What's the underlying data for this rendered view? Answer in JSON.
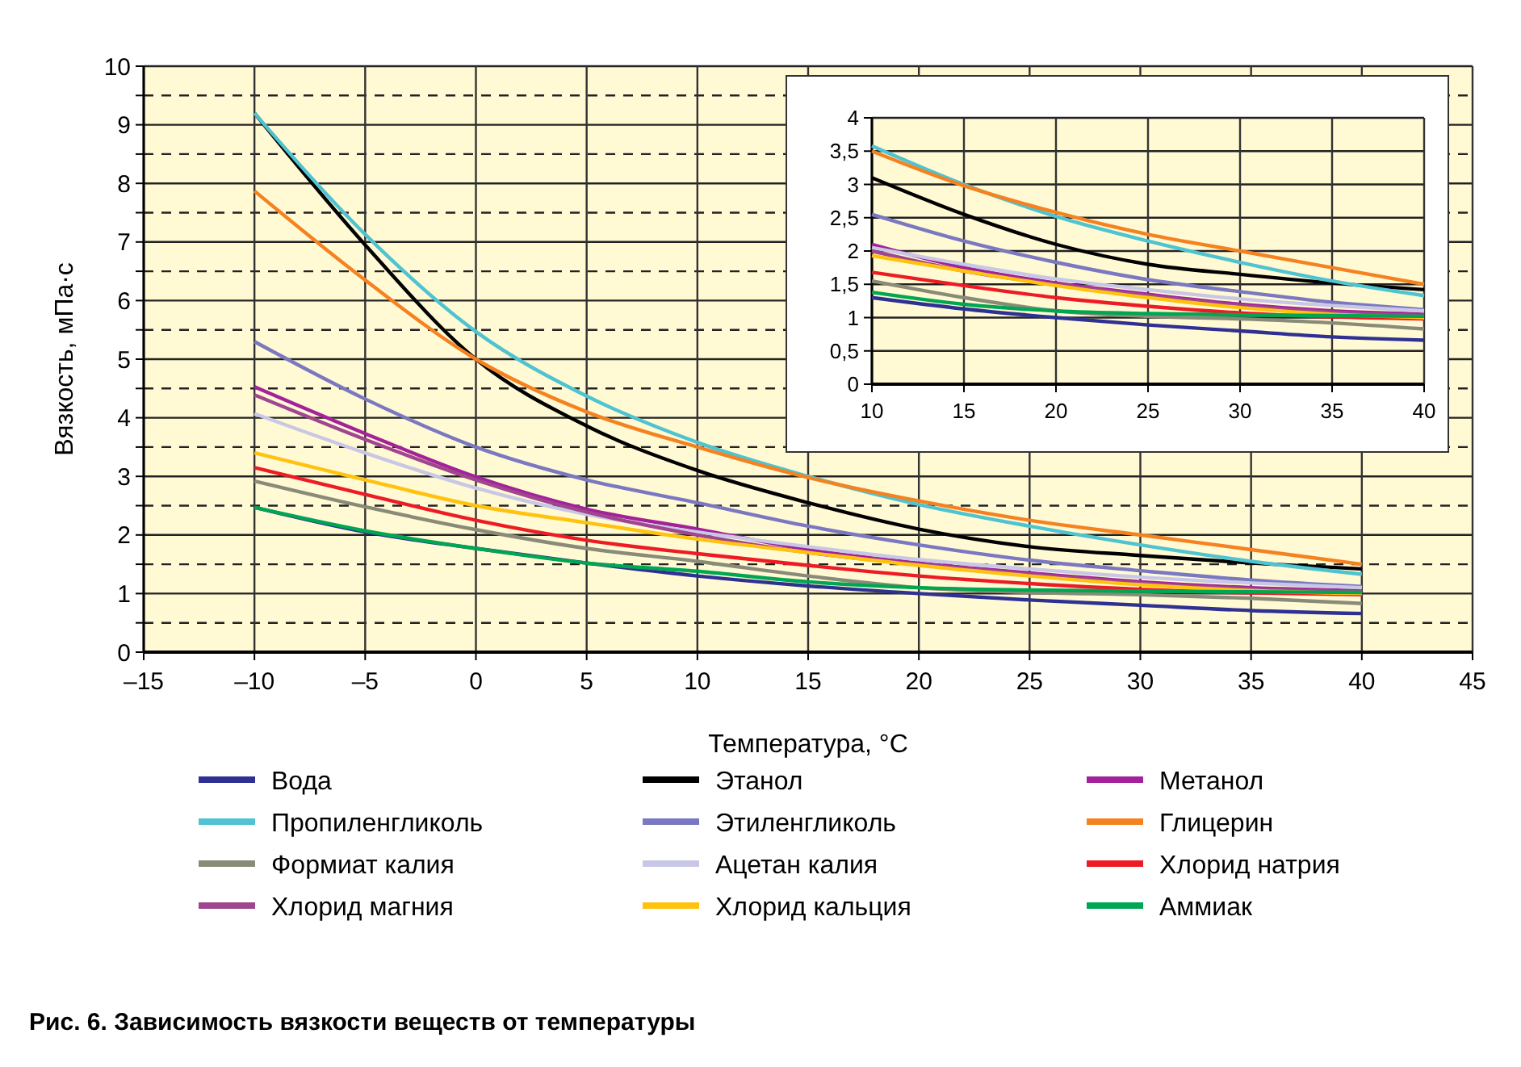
{
  "chart_data": [
    {
      "type": "line",
      "title": "Рис. 6. Зависимость вязкости веществ от температуры",
      "xlabel": "Температура, °C",
      "ylabel": "Вязкость, мПа·с",
      "grid": true,
      "legend": "bottom",
      "x": [
        -10,
        -5,
        0,
        5,
        10,
        15,
        20,
        25,
        30,
        35,
        40
      ],
      "xlim": [
        -15,
        45
      ],
      "xticks": [
        {
          "value": -15,
          "label": "–15"
        },
        {
          "value": -10,
          "label": "–10"
        },
        {
          "value": -5,
          "label": "–5"
        },
        0,
        5,
        10,
        15,
        20,
        25,
        30,
        35,
        40,
        45
      ],
      "ylim": [
        0,
        10
      ],
      "yticks": [
        0,
        {
          "value": 0.5,
          "label": null
        },
        1,
        {
          "value": 1.5,
          "label": null
        },
        2,
        {
          "value": 2.5,
          "label": null
        },
        3,
        {
          "value": 3.5,
          "label": null
        },
        4,
        {
          "value": 4.5,
          "label": null
        },
        5,
        {
          "value": 5.5,
          "label": null
        },
        6,
        {
          "value": 6.5,
          "label": null
        },
        7,
        {
          "value": 7.5,
          "label": null
        },
        8,
        {
          "value": 8.5,
          "label": null
        },
        9,
        {
          "value": 9.5,
          "label": null
        },
        10
      ],
      "series": [
        {
          "name": "Вода",
          "color": "#2e3192",
          "values": [
            2.47,
            2.05,
            1.77,
            1.52,
            1.3,
            1.13,
            1.0,
            0.89,
            0.8,
            0.71,
            0.66
          ]
        },
        {
          "name": "Этанол",
          "color": "#000000",
          "values": [
            9.2,
            6.95,
            5.0,
            3.86,
            3.1,
            2.55,
            2.1,
            1.8,
            1.65,
            1.52,
            1.42
          ]
        },
        {
          "name": "Метанол",
          "color": "#a3229a",
          "values": [
            4.53,
            3.73,
            2.99,
            2.44,
            2.1,
            1.75,
            1.52,
            1.35,
            1.2,
            1.1,
            1.05
          ]
        },
        {
          "name": "Пропиленгликоль",
          "color": "#4fc3d0",
          "values": [
            9.2,
            7.13,
            5.47,
            4.37,
            3.58,
            3.0,
            2.52,
            2.15,
            1.83,
            1.55,
            1.33
          ]
        },
        {
          "name": "Этиленгликоль",
          "color": "#7a78c0",
          "values": [
            5.3,
            4.32,
            3.5,
            2.94,
            2.55,
            2.15,
            1.83,
            1.57,
            1.39,
            1.23,
            1.12
          ]
        },
        {
          "name": "Глицерин",
          "color": "#f58220",
          "values": [
            7.87,
            6.35,
            5.0,
            4.1,
            3.5,
            2.98,
            2.58,
            2.25,
            2.0,
            1.75,
            1.5
          ]
        },
        {
          "name": "Формиат калия",
          "color": "#8a8a78",
          "values": [
            2.92,
            2.48,
            2.09,
            1.77,
            1.55,
            1.3,
            1.1,
            1.02,
            0.98,
            0.92,
            0.83
          ]
        },
        {
          "name": "Ацетан калия",
          "color": "#c8c8e6",
          "values": [
            4.07,
            3.4,
            2.8,
            2.35,
            2.05,
            1.8,
            1.58,
            1.42,
            1.28,
            1.18,
            1.1
          ]
        },
        {
          "name": "Хлорид натрия",
          "color": "#ed1c24",
          "values": [
            3.15,
            2.69,
            2.25,
            1.91,
            1.68,
            1.48,
            1.3,
            1.17,
            1.07,
            1.01,
            0.98
          ]
        },
        {
          "name": "Хлорид магния",
          "color": "#a0468e",
          "values": [
            4.39,
            3.63,
            2.94,
            2.39,
            2.0,
            1.7,
            1.5,
            1.33,
            1.18,
            1.08,
            1.03
          ]
        },
        {
          "name": "Хлорид кальция",
          "color": "#ffc20e",
          "values": [
            3.4,
            2.94,
            2.5,
            2.21,
            1.93,
            1.7,
            1.48,
            1.3,
            1.15,
            1.05,
            1.0
          ]
        },
        {
          "name": "Аммиак",
          "color": "#00a651",
          "values": [
            2.47,
            2.07,
            1.77,
            1.52,
            1.38,
            1.2,
            1.1,
            1.06,
            1.04,
            1.03,
            1.02
          ]
        }
      ]
    },
    {
      "type": "line",
      "grid": true,
      "x": [
        10,
        15,
        20,
        25,
        30,
        35,
        40
      ],
      "xlim": [
        10,
        40
      ],
      "xticks": [
        10,
        15,
        20,
        25,
        30,
        35,
        40
      ],
      "ylim": [
        0,
        4
      ],
      "yticks": [
        0,
        {
          "value": 0.5,
          "label": "0,5"
        },
        1,
        {
          "value": 1.5,
          "label": "1,5"
        },
        2,
        {
          "value": 2.5,
          "label": "2,5"
        },
        3,
        {
          "value": 3.5,
          "label": "3,5"
        },
        4
      ],
      "series": [
        {
          "color": "#2e3192",
          "values": [
            1.3,
            1.13,
            1.0,
            0.89,
            0.8,
            0.71,
            0.66
          ]
        },
        {
          "color": "#000000",
          "values": [
            3.1,
            2.55,
            2.1,
            1.8,
            1.65,
            1.52,
            1.42
          ]
        },
        {
          "color": "#a3229a",
          "values": [
            2.1,
            1.75,
            1.52,
            1.35,
            1.2,
            1.1,
            1.05
          ]
        },
        {
          "color": "#4fc3d0",
          "values": [
            3.58,
            3.0,
            2.52,
            2.15,
            1.83,
            1.55,
            1.33
          ]
        },
        {
          "color": "#7a78c0",
          "values": [
            2.55,
            2.15,
            1.83,
            1.57,
            1.39,
            1.23,
            1.12
          ]
        },
        {
          "color": "#f58220",
          "values": [
            3.5,
            2.98,
            2.58,
            2.25,
            2.0,
            1.75,
            1.5
          ]
        },
        {
          "color": "#8a8a78",
          "values": [
            1.55,
            1.3,
            1.1,
            1.02,
            0.98,
            0.92,
            0.83
          ]
        },
        {
          "color": "#c8c8e6",
          "values": [
            2.05,
            1.8,
            1.58,
            1.42,
            1.28,
            1.18,
            1.1
          ]
        },
        {
          "color": "#ed1c24",
          "values": [
            1.68,
            1.48,
            1.3,
            1.17,
            1.07,
            1.01,
            0.98
          ]
        },
        {
          "color": "#a0468e",
          "values": [
            2.0,
            1.7,
            1.5,
            1.33,
            1.18,
            1.08,
            1.03
          ]
        },
        {
          "color": "#ffc20e",
          "values": [
            1.93,
            1.7,
            1.48,
            1.3,
            1.15,
            1.05,
            1.0
          ]
        },
        {
          "color": "#00a651",
          "values": [
            1.38,
            1.2,
            1.1,
            1.06,
            1.04,
            1.03,
            1.02
          ]
        }
      ]
    }
  ]
}
